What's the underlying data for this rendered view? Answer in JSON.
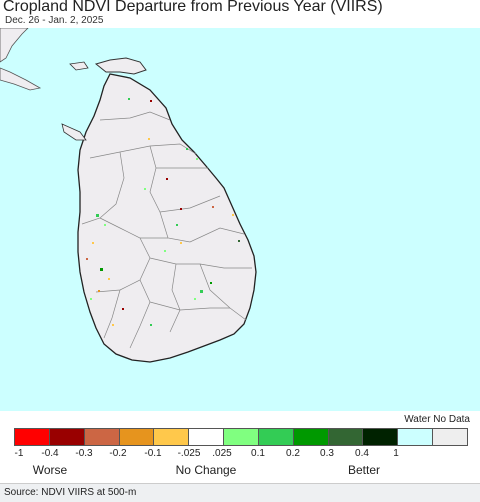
{
  "title": "Cropland NDVI Departure from Previous Year (VIIRS)",
  "date_range": "Dec. 26 - Jan. 2, 2025",
  "legend": {
    "no_data_label": "Water No Data",
    "colors": [
      "#ff0000",
      "#990000",
      "#cc6644",
      "#e6941e",
      "#ffc84b",
      "#ffffff",
      "#80ff80",
      "#33cc55",
      "#009900",
      "#336633",
      "#002200",
      "#ccffff",
      "#eeeeee"
    ],
    "ticks": [
      "-1",
      "-0.4",
      "-0.3",
      "-0.2",
      "-0.1",
      "-.025",
      ".025",
      "0.1",
      "0.2",
      "0.3",
      "0.4",
      "1"
    ],
    "categories": {
      "worse": "Worse",
      "no_change": "No Change",
      "better": "Better"
    }
  },
  "source": "Source: NDVI VIIRS at 500-m",
  "map_colors": {
    "water": "#ccffff",
    "land": "#efedf0",
    "border": "#888888"
  }
}
